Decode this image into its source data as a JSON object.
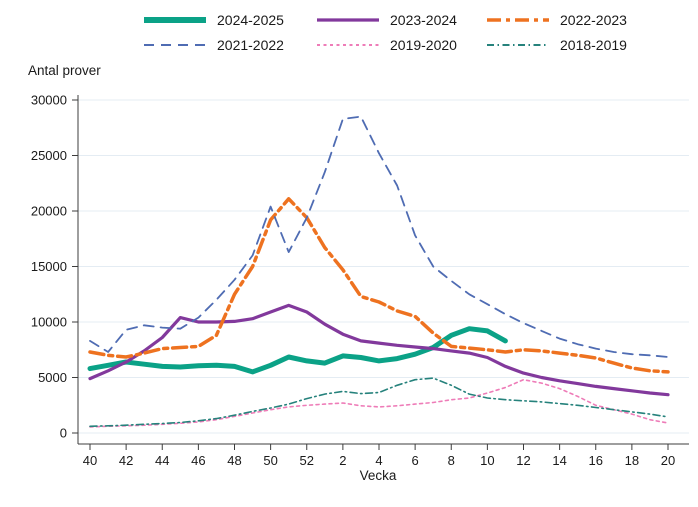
{
  "page": {
    "background_color": "#ffffff",
    "text_color": "#1a1a1a",
    "grid_color": "#e4ecf3",
    "axis_color": "#3c3c3c"
  },
  "chart_data": {
    "type": "line",
    "title": "",
    "ylabel": "Antal prover",
    "xlabel": "Vecka",
    "ylim": [
      0,
      30000
    ],
    "yticks": [
      0,
      5000,
      10000,
      15000,
      20000,
      25000,
      30000
    ],
    "grid": "horizontal",
    "legend_position": "top",
    "legend_rows": [
      [
        "2024-2025",
        "2023-2024",
        "2022-2023"
      ],
      [
        "2021-2022",
        "2019-2020",
        "2018-2019"
      ]
    ],
    "x_categories": [
      "40",
      "41",
      "42",
      "43",
      "44",
      "45",
      "46",
      "47",
      "48",
      "49",
      "50",
      "51",
      "52",
      "1",
      "2",
      "3",
      "4",
      "5",
      "6",
      "7",
      "8",
      "9",
      "10",
      "11",
      "12",
      "13",
      "14",
      "15",
      "16",
      "17",
      "18",
      "19",
      "20"
    ],
    "xtick_labels": [
      "40",
      "42",
      "44",
      "46",
      "48",
      "50",
      "52",
      "2",
      "4",
      "6",
      "8",
      "10",
      "12",
      "14",
      "16",
      "18",
      "20"
    ],
    "series": [
      {
        "name": "2024-2025",
        "color": "#0ba287",
        "style": "solid",
        "width": 5,
        "values": [
          5800,
          6100,
          6400,
          6200,
          6000,
          5950,
          6050,
          6100,
          6000,
          5500,
          6100,
          6850,
          6500,
          6300,
          6950,
          6800,
          6500,
          6700,
          7100,
          7700,
          8800,
          9400,
          9200,
          8300,
          null,
          null,
          null,
          null,
          null,
          null,
          null,
          null,
          null
        ]
      },
      {
        "name": "2023-2024",
        "color": "#82399c",
        "style": "solid",
        "width": 3.2,
        "values": [
          4900,
          5600,
          6400,
          7400,
          8600,
          10400,
          10000,
          10000,
          10050,
          10300,
          10900,
          11500,
          10900,
          9800,
          8900,
          8300,
          8100,
          7900,
          7750,
          7600,
          7400,
          7200,
          6800,
          6000,
          5400,
          5000,
          4700,
          4450,
          4200,
          4000,
          3800,
          3600,
          3450
        ]
      },
      {
        "name": "2022-2023",
        "color": "#ee7220",
        "style": "dash-dot",
        "width": 3.5,
        "values": [
          7300,
          7000,
          6850,
          7200,
          7600,
          7700,
          7800,
          8800,
          12500,
          15000,
          19200,
          21100,
          19400,
          16700,
          14700,
          12300,
          11800,
          11000,
          10500,
          9000,
          7800,
          7650,
          7500,
          7300,
          7500,
          7400,
          7200,
          7000,
          6760,
          6300,
          5860,
          5600,
          5500
        ]
      },
      {
        "name": "2021-2022",
        "color": "#4f6cb3",
        "style": "dashed",
        "width": 1.8,
        "values": [
          8300,
          7300,
          9300,
          9700,
          9500,
          9400,
          10400,
          12000,
          13800,
          16000,
          20400,
          16300,
          19400,
          23500,
          28300,
          28500,
          25200,
          22300,
          17800,
          15000,
          13700,
          12500,
          11600,
          10700,
          9900,
          9200,
          8500,
          8000,
          7600,
          7300,
          7100,
          7000,
          6850
        ]
      },
      {
        "name": "2019-2020",
        "color": "#ee7cb8",
        "style": "dotted",
        "width": 1.6,
        "values": [
          550,
          600,
          650,
          700,
          780,
          870,
          1000,
          1200,
          1500,
          1800,
          2100,
          2350,
          2500,
          2600,
          2700,
          2450,
          2350,
          2450,
          2600,
          2750,
          3000,
          3150,
          3600,
          4100,
          4800,
          4500,
          4000,
          3300,
          2500,
          2100,
          1700,
          1200,
          900
        ]
      },
      {
        "name": "2018-2019",
        "color": "#26827c",
        "style": "dash-dot-fine",
        "width": 1.6,
        "values": [
          600,
          650,
          700,
          780,
          860,
          950,
          1100,
          1300,
          1600,
          1950,
          2250,
          2600,
          3100,
          3500,
          3750,
          3550,
          3650,
          4300,
          4800,
          4950,
          4300,
          3500,
          3150,
          3000,
          2900,
          2800,
          2650,
          2500,
          2300,
          2100,
          1900,
          1700,
          1450
        ]
      }
    ]
  }
}
